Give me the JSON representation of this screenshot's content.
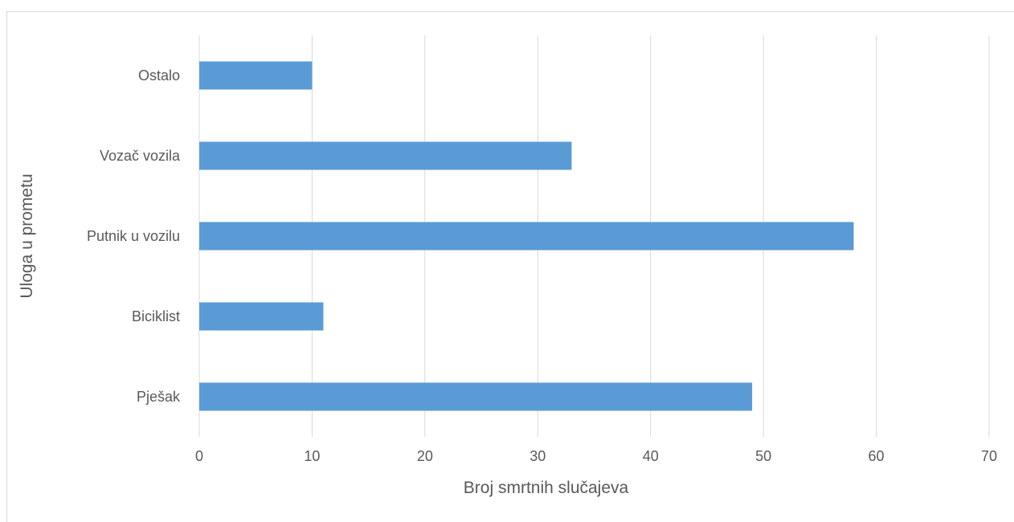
{
  "chart_data": {
    "type": "bar",
    "orientation": "horizontal",
    "categories": [
      "Pješak",
      "Biciklist",
      "Putnik u vozilu",
      "Vozač vozila",
      "Ostalo"
    ],
    "values": [
      49,
      11,
      58,
      33,
      10
    ],
    "xlabel": "Broj smrtnih slučajeva",
    "ylabel": "Uloga u prometu",
    "xlim": [
      0,
      70
    ],
    "xticks": [
      0,
      10,
      20,
      30,
      40,
      50,
      60,
      70
    ],
    "grid": "vertical",
    "legend": "none",
    "bar_color": "#5b9bd5"
  }
}
